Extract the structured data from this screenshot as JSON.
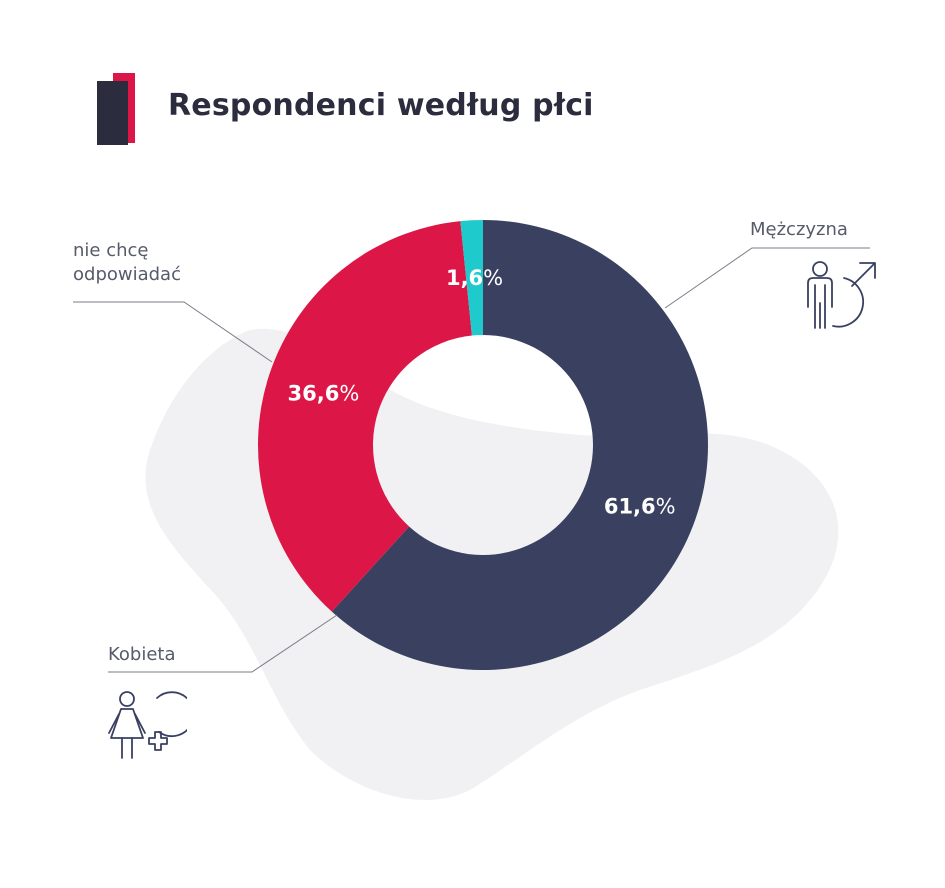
{
  "title": "Respondenci według płci",
  "colors": {
    "men": "#3a4060",
    "women": "#dc1747",
    "refuse": "#1ecacb",
    "blob": "#f1f1f3",
    "leader": "#7a7d88",
    "icon": "#3a4060",
    "accent_dark": "#2b2d3e",
    "accent_red": "#dc1747"
  },
  "icons": {
    "men": "man-with-male-symbol-icon",
    "women": "woman-with-female-symbol-icon",
    "brand": "brand-bar-mark-icon"
  },
  "chart_data": {
    "type": "pie",
    "variant": "donut",
    "start": "top, clockwise",
    "unit": "%",
    "labels": [
      "Mężczyzna",
      "Kobieta",
      "nie chcę odpowiadać"
    ],
    "values": [
      61.6,
      36.6,
      1.6
    ],
    "value_labels": [
      "61,6",
      "36,6",
      "1,6"
    ],
    "series_keys": [
      "men",
      "women",
      "refuse"
    ],
    "label_lines": {
      "refuse": [
        "nie chcę",
        "odpowiadać"
      ]
    }
  }
}
